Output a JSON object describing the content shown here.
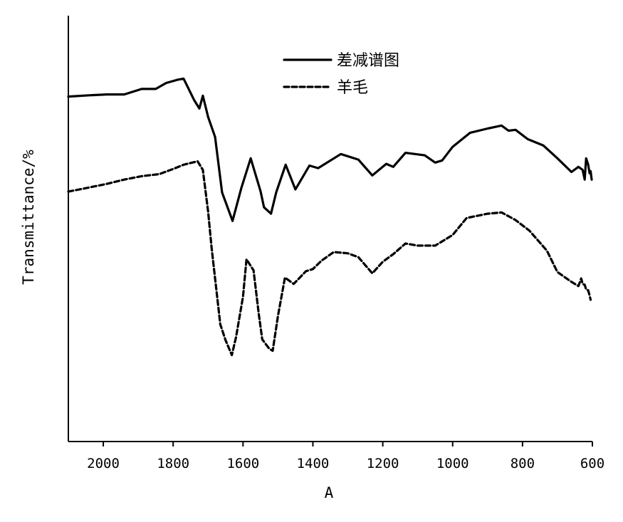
{
  "chart_data": {
    "type": "line",
    "title": "",
    "xlabel": "A",
    "ylabel": "Transmittance/%",
    "xlim": [
      2100,
      600
    ],
    "x_reversed": true,
    "ylim": [
      0,
      100
    ],
    "y_ticks_shown": false,
    "x_ticks": [
      2000,
      1800,
      1600,
      1400,
      1200,
      1000,
      800,
      600
    ],
    "x_tick_labels": [
      "2000",
      "1800",
      "1600",
      "1400",
      "1200",
      "1000",
      "800",
      "600"
    ],
    "grid": false,
    "legend_position": "top-center",
    "series": [
      {
        "name": "差减谱图",
        "style": "solid",
        "color": "#000000",
        "points": [
          [
            2100,
            81.0
          ],
          [
            2040,
            81.3
          ],
          [
            1990,
            81.5
          ],
          [
            1940,
            81.5
          ],
          [
            1890,
            82.8
          ],
          [
            1850,
            82.8
          ],
          [
            1820,
            84.2
          ],
          [
            1785,
            85.0
          ],
          [
            1770,
            85.2
          ],
          [
            1740,
            80.2
          ],
          [
            1725,
            78.2
          ],
          [
            1715,
            81.2
          ],
          [
            1700,
            76.2
          ],
          [
            1680,
            71.5
          ],
          [
            1660,
            58.5
          ],
          [
            1630,
            51.8
          ],
          [
            1605,
            59.5
          ],
          [
            1578,
            66.5
          ],
          [
            1550,
            58.8
          ],
          [
            1540,
            55.0
          ],
          [
            1520,
            53.5
          ],
          [
            1505,
            58.5
          ],
          [
            1478,
            65.0
          ],
          [
            1450,
            59.2
          ],
          [
            1410,
            64.8
          ],
          [
            1385,
            64.2
          ],
          [
            1320,
            67.5
          ],
          [
            1270,
            66.2
          ],
          [
            1230,
            62.5
          ],
          [
            1190,
            65.2
          ],
          [
            1170,
            64.5
          ],
          [
            1135,
            67.8
          ],
          [
            1080,
            67.2
          ],
          [
            1050,
            65.5
          ],
          [
            1030,
            66.0
          ],
          [
            1000,
            69.2
          ],
          [
            950,
            72.5
          ],
          [
            900,
            73.5
          ],
          [
            860,
            74.2
          ],
          [
            840,
            73.0
          ],
          [
            820,
            73.2
          ],
          [
            785,
            71.0
          ],
          [
            740,
            69.5
          ],
          [
            700,
            66.5
          ],
          [
            660,
            63.3
          ],
          [
            640,
            64.5
          ],
          [
            628,
            63.8
          ],
          [
            622,
            61.5
          ],
          [
            618,
            66.5
          ],
          [
            612,
            65.0
          ],
          [
            608,
            63.0
          ],
          [
            605,
            63.5
          ],
          [
            602,
            61.5
          ]
        ]
      },
      {
        "name": "羊毛",
        "style": "dashed",
        "color": "#000000",
        "points": [
          [
            2100,
            58.7
          ],
          [
            2050,
            59.5
          ],
          [
            1990,
            60.5
          ],
          [
            1940,
            61.5
          ],
          [
            1890,
            62.3
          ],
          [
            1840,
            62.8
          ],
          [
            1800,
            64.0
          ],
          [
            1770,
            65.0
          ],
          [
            1730,
            65.8
          ],
          [
            1715,
            63.8
          ],
          [
            1700,
            54.0
          ],
          [
            1690,
            45.5
          ],
          [
            1665,
            27.5
          ],
          [
            1650,
            23.8
          ],
          [
            1632,
            20.3
          ],
          [
            1620,
            24.5
          ],
          [
            1600,
            34.0
          ],
          [
            1590,
            42.8
          ],
          [
            1570,
            40.2
          ],
          [
            1555,
            30.0
          ],
          [
            1545,
            24.0
          ],
          [
            1525,
            21.8
          ],
          [
            1515,
            21.3
          ],
          [
            1500,
            29.5
          ],
          [
            1480,
            38.5
          ],
          [
            1455,
            37.0
          ],
          [
            1420,
            40.0
          ],
          [
            1400,
            40.5
          ],
          [
            1375,
            42.5
          ],
          [
            1340,
            44.5
          ],
          [
            1300,
            44.2
          ],
          [
            1270,
            43.3
          ],
          [
            1230,
            39.5
          ],
          [
            1200,
            42.2
          ],
          [
            1170,
            44.0
          ],
          [
            1135,
            46.5
          ],
          [
            1100,
            46.0
          ],
          [
            1050,
            46.0
          ],
          [
            1000,
            48.5
          ],
          [
            960,
            52.5
          ],
          [
            900,
            53.5
          ],
          [
            860,
            53.8
          ],
          [
            820,
            52.0
          ],
          [
            780,
            49.5
          ],
          [
            730,
            44.8
          ],
          [
            700,
            39.8
          ],
          [
            660,
            37.5
          ],
          [
            640,
            36.5
          ],
          [
            632,
            38.3
          ],
          [
            628,
            37.0
          ],
          [
            622,
            36.8
          ],
          [
            618,
            35.7
          ],
          [
            612,
            35.5
          ],
          [
            608,
            34.3
          ],
          [
            605,
            33.3
          ]
        ]
      }
    ]
  }
}
